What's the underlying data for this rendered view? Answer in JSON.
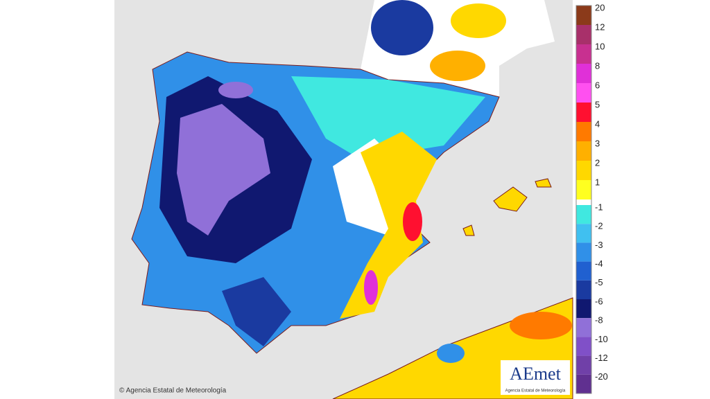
{
  "map": {
    "copyright": "© Agencia Estatal de Meteorología",
    "logo": {
      "title": "AEmet",
      "subtitle": "Agencia Estatal de Meteorología"
    }
  },
  "legend": {
    "items": [
      {
        "label": "20",
        "color": "#8b3a1a"
      },
      {
        "label": "12",
        "color": "#a8306a"
      },
      {
        "label": "10",
        "color": "#c83090"
      },
      {
        "label": "8",
        "color": "#e030d8"
      },
      {
        "label": "6",
        "color": "#ff50f0"
      },
      {
        "label": "5",
        "color": "#ff1030"
      },
      {
        "label": "4",
        "color": "#ff7a00"
      },
      {
        "label": "3",
        "color": "#ffb000"
      },
      {
        "label": "2",
        "color": "#ffd800"
      },
      {
        "label": "1",
        "color": "#ffff20"
      },
      {
        "label": "-1",
        "color": "#40e8e0"
      },
      {
        "label": "-2",
        "color": "#40c0f0"
      },
      {
        "label": "-3",
        "color": "#3090e8"
      },
      {
        "label": "-4",
        "color": "#2060d0"
      },
      {
        "label": "-5",
        "color": "#1a3aa0"
      },
      {
        "label": "-6",
        "color": "#101870"
      },
      {
        "label": "-8",
        "color": "#9070d8"
      },
      {
        "label": "-10",
        "color": "#8050c8"
      },
      {
        "label": "-12",
        "color": "#7040a8"
      },
      {
        "label": "-20",
        "color": "#603090"
      }
    ]
  }
}
